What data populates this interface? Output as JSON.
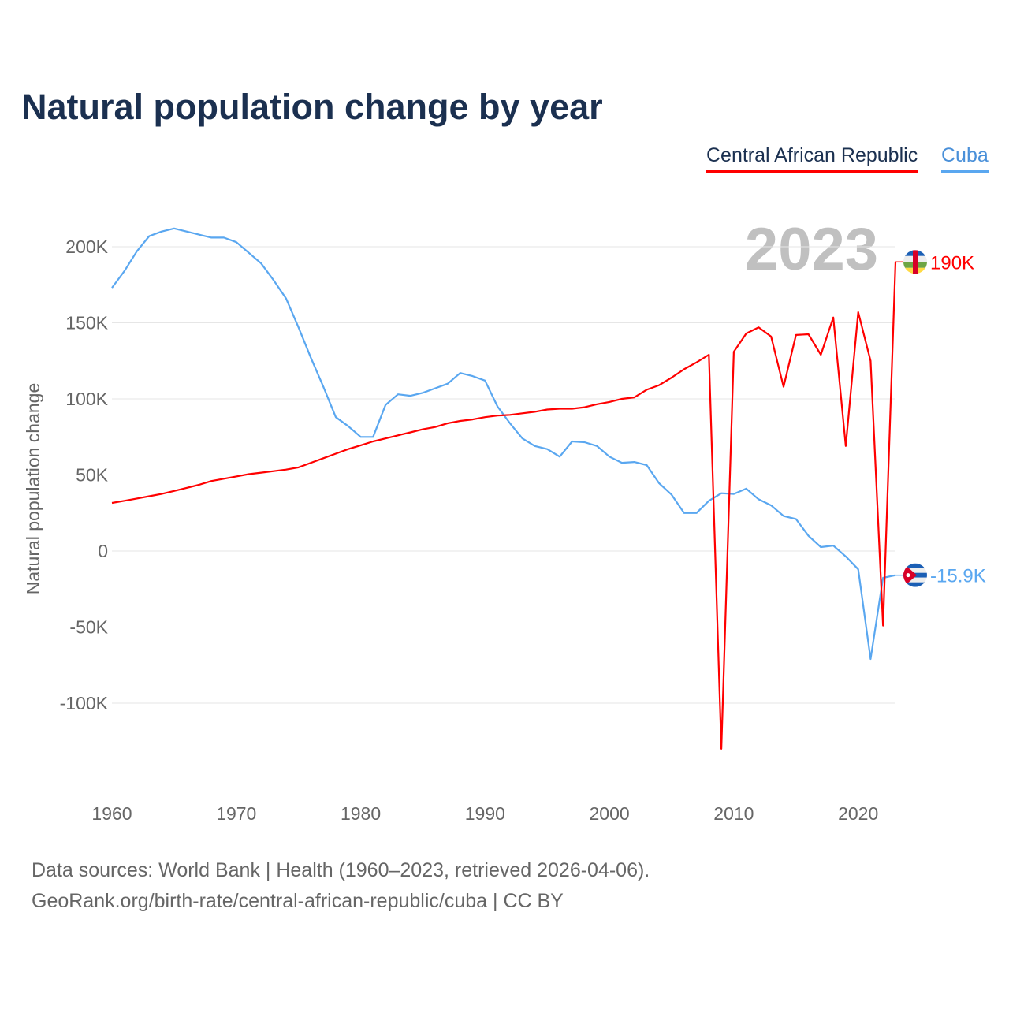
{
  "chart_data": {
    "type": "line",
    "title": "Natural population change by year",
    "ylabel": "Natural population change",
    "xlabel": "",
    "xlim": [
      1960,
      2023
    ],
    "ylim": [
      -150,
      230
    ],
    "unit": "K",
    "x_ticks": [
      1960,
      1970,
      1980,
      1990,
      2000,
      2010,
      2020
    ],
    "y_ticks": [
      -100,
      -50,
      0,
      50,
      100,
      150,
      200
    ],
    "y_tick_labels": [
      "-100K",
      "-50K",
      "0",
      "50K",
      "100K",
      "150K",
      "200K"
    ],
    "grid": true,
    "legend_position": "top-right",
    "year_label": "2023",
    "x": [
      1960,
      1961,
      1962,
      1963,
      1964,
      1965,
      1966,
      1967,
      1968,
      1969,
      1970,
      1971,
      1972,
      1973,
      1974,
      1975,
      1976,
      1977,
      1978,
      1979,
      1980,
      1981,
      1982,
      1983,
      1984,
      1985,
      1986,
      1987,
      1988,
      1989,
      1990,
      1991,
      1992,
      1993,
      1994,
      1995,
      1996,
      1997,
      1998,
      1999,
      2000,
      2001,
      2002,
      2003,
      2004,
      2005,
      2006,
      2007,
      2008,
      2009,
      2010,
      2011,
      2012,
      2013,
      2014,
      2015,
      2016,
      2017,
      2018,
      2019,
      2020,
      2021,
      2022,
      2023
    ],
    "series": [
      {
        "name": "Central African Republic",
        "color": "#ff0000",
        "end_label": "190K",
        "flag": "central-african-republic-flag",
        "values": [
          31.6,
          33,
          34.5,
          36,
          37.5,
          39.5,
          41.5,
          43.5,
          46,
          47.5,
          49,
          50.5,
          51.5,
          52.5,
          53.5,
          55,
          58,
          61,
          64,
          67,
          69.5,
          72,
          74,
          76,
          78,
          80,
          81.5,
          84,
          85.5,
          86.5,
          88,
          89,
          89.5,
          90.5,
          91.5,
          93,
          93.5,
          93.5,
          94.5,
          96.5,
          98,
          100,
          101,
          106,
          109,
          114,
          119.5,
          124,
          129,
          -130,
          131,
          143,
          147,
          141,
          108,
          142,
          142.5,
          129,
          153.5,
          69,
          157,
          125,
          -49,
          190
        ]
      },
      {
        "name": "Cuba",
        "color": "#5aa7f0",
        "end_label": "-15.9K",
        "flag": "cuba-flag",
        "values": [
          173,
          184,
          197,
          207,
          210,
          212,
          210,
          208,
          206,
          206,
          203,
          196,
          189,
          178,
          166,
          147,
          127,
          108,
          88,
          82,
          75,
          75,
          96,
          103,
          102,
          104,
          107,
          110,
          117,
          115,
          112,
          95,
          84,
          74,
          69,
          67,
          62,
          72,
          71.5,
          69,
          62,
          58,
          58.5,
          56.5,
          44.5,
          37,
          25,
          25,
          33,
          38,
          37.5,
          41,
          34,
          30,
          23,
          21,
          10,
          2.6,
          3.6,
          -3.6,
          -12,
          -71,
          -17.6,
          -15.9
        ]
      }
    ]
  },
  "footer": {
    "line1": "Data sources: World Bank | Health (1960–2023, retrieved 2026-04-06).",
    "line2": "GeoRank.org/birth-rate/central-african-republic/cuba | CC BY"
  }
}
